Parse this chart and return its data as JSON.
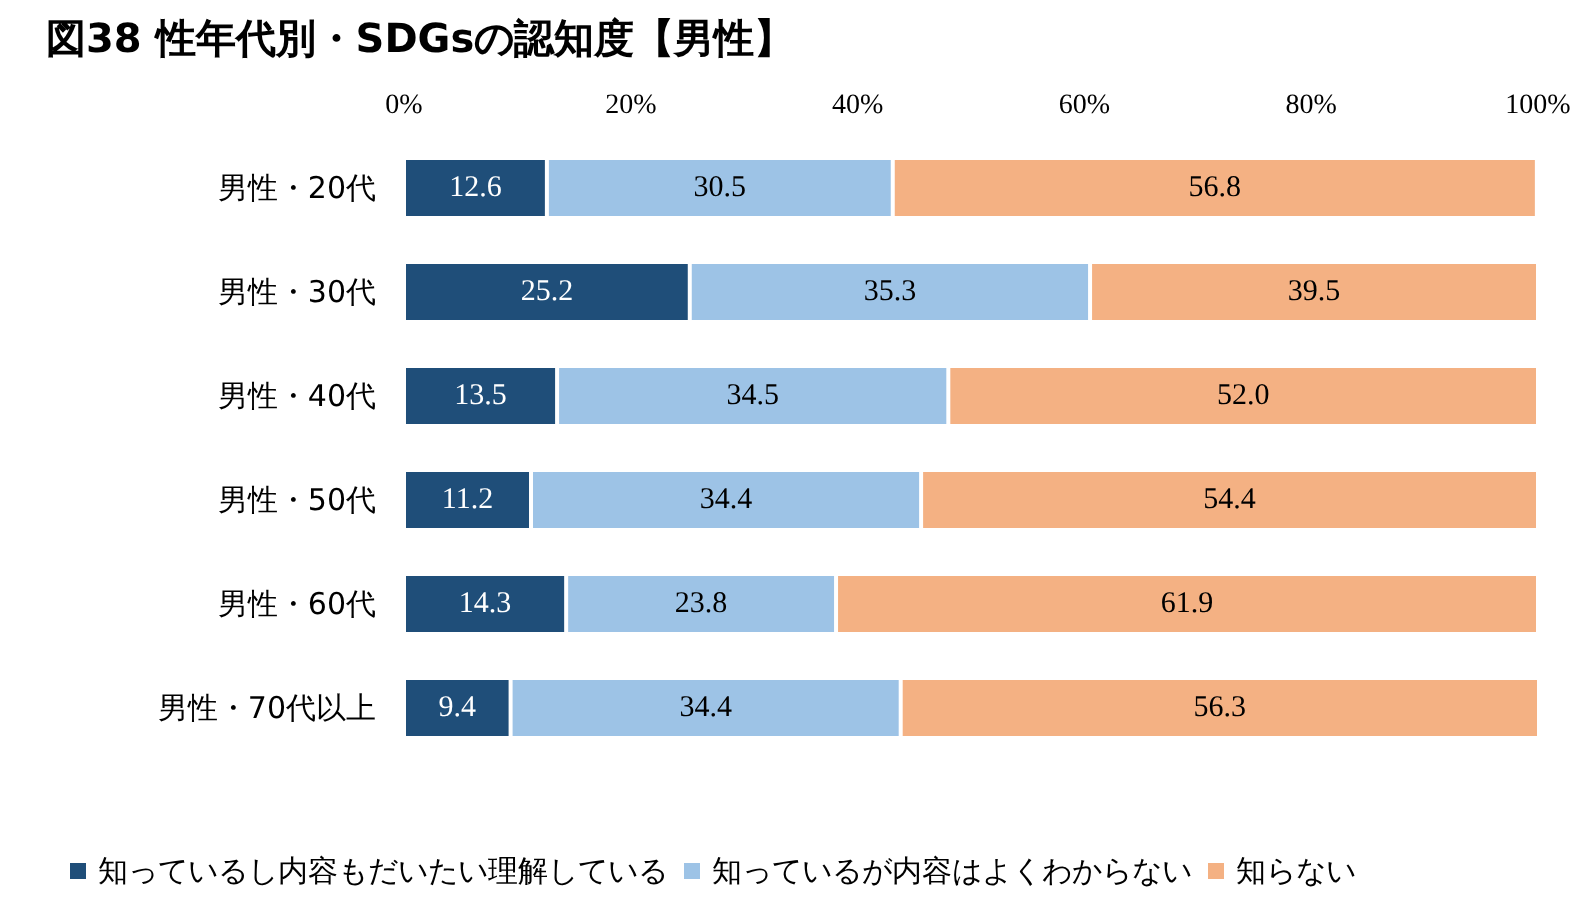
{
  "chart_data": {
    "type": "bar",
    "orientation": "horizontal",
    "stacked": true,
    "title": "図38 性年代別・SDGsの認知度【男性】",
    "categories": [
      "男性・20代",
      "男性・30代",
      "男性・40代",
      "男性・50代",
      "男性・60代",
      "男性・70代以上"
    ],
    "series": [
      {
        "name": "知っているし内容もだいたい理解している",
        "color": "#1f4e79",
        "values": [
          12.6,
          25.2,
          13.5,
          11.2,
          14.3,
          9.4
        ],
        "value_labels": [
          "12.6",
          "25.2",
          "13.5",
          "11.2",
          "14.3",
          "9.4"
        ]
      },
      {
        "name": "知っているが内容はよくわからない",
        "color": "#9dc3e6",
        "values": [
          30.5,
          35.3,
          34.5,
          34.4,
          23.8,
          34.4
        ],
        "value_labels": [
          "30.5",
          "35.3",
          "34.5",
          "34.4",
          "23.8",
          "34.4"
        ]
      },
      {
        "name": "知らない",
        "color": "#f4b183",
        "values": [
          56.8,
          39.5,
          52.0,
          54.4,
          61.9,
          56.3
        ],
        "value_labels": [
          "56.8",
          "39.5",
          "52.0",
          "54.4",
          "61.9",
          "56.3"
        ]
      }
    ],
    "xlim": [
      0,
      100
    ],
    "xticks": [
      {
        "value": 0,
        "label": "0%"
      },
      {
        "value": 20,
        "label": "20%"
      },
      {
        "value": 40,
        "label": "40%"
      },
      {
        "value": 60,
        "label": "60%"
      },
      {
        "value": 80,
        "label": "80%"
      },
      {
        "value": 100,
        "label": "100%"
      }
    ],
    "grid": false,
    "legend": "bottom"
  }
}
